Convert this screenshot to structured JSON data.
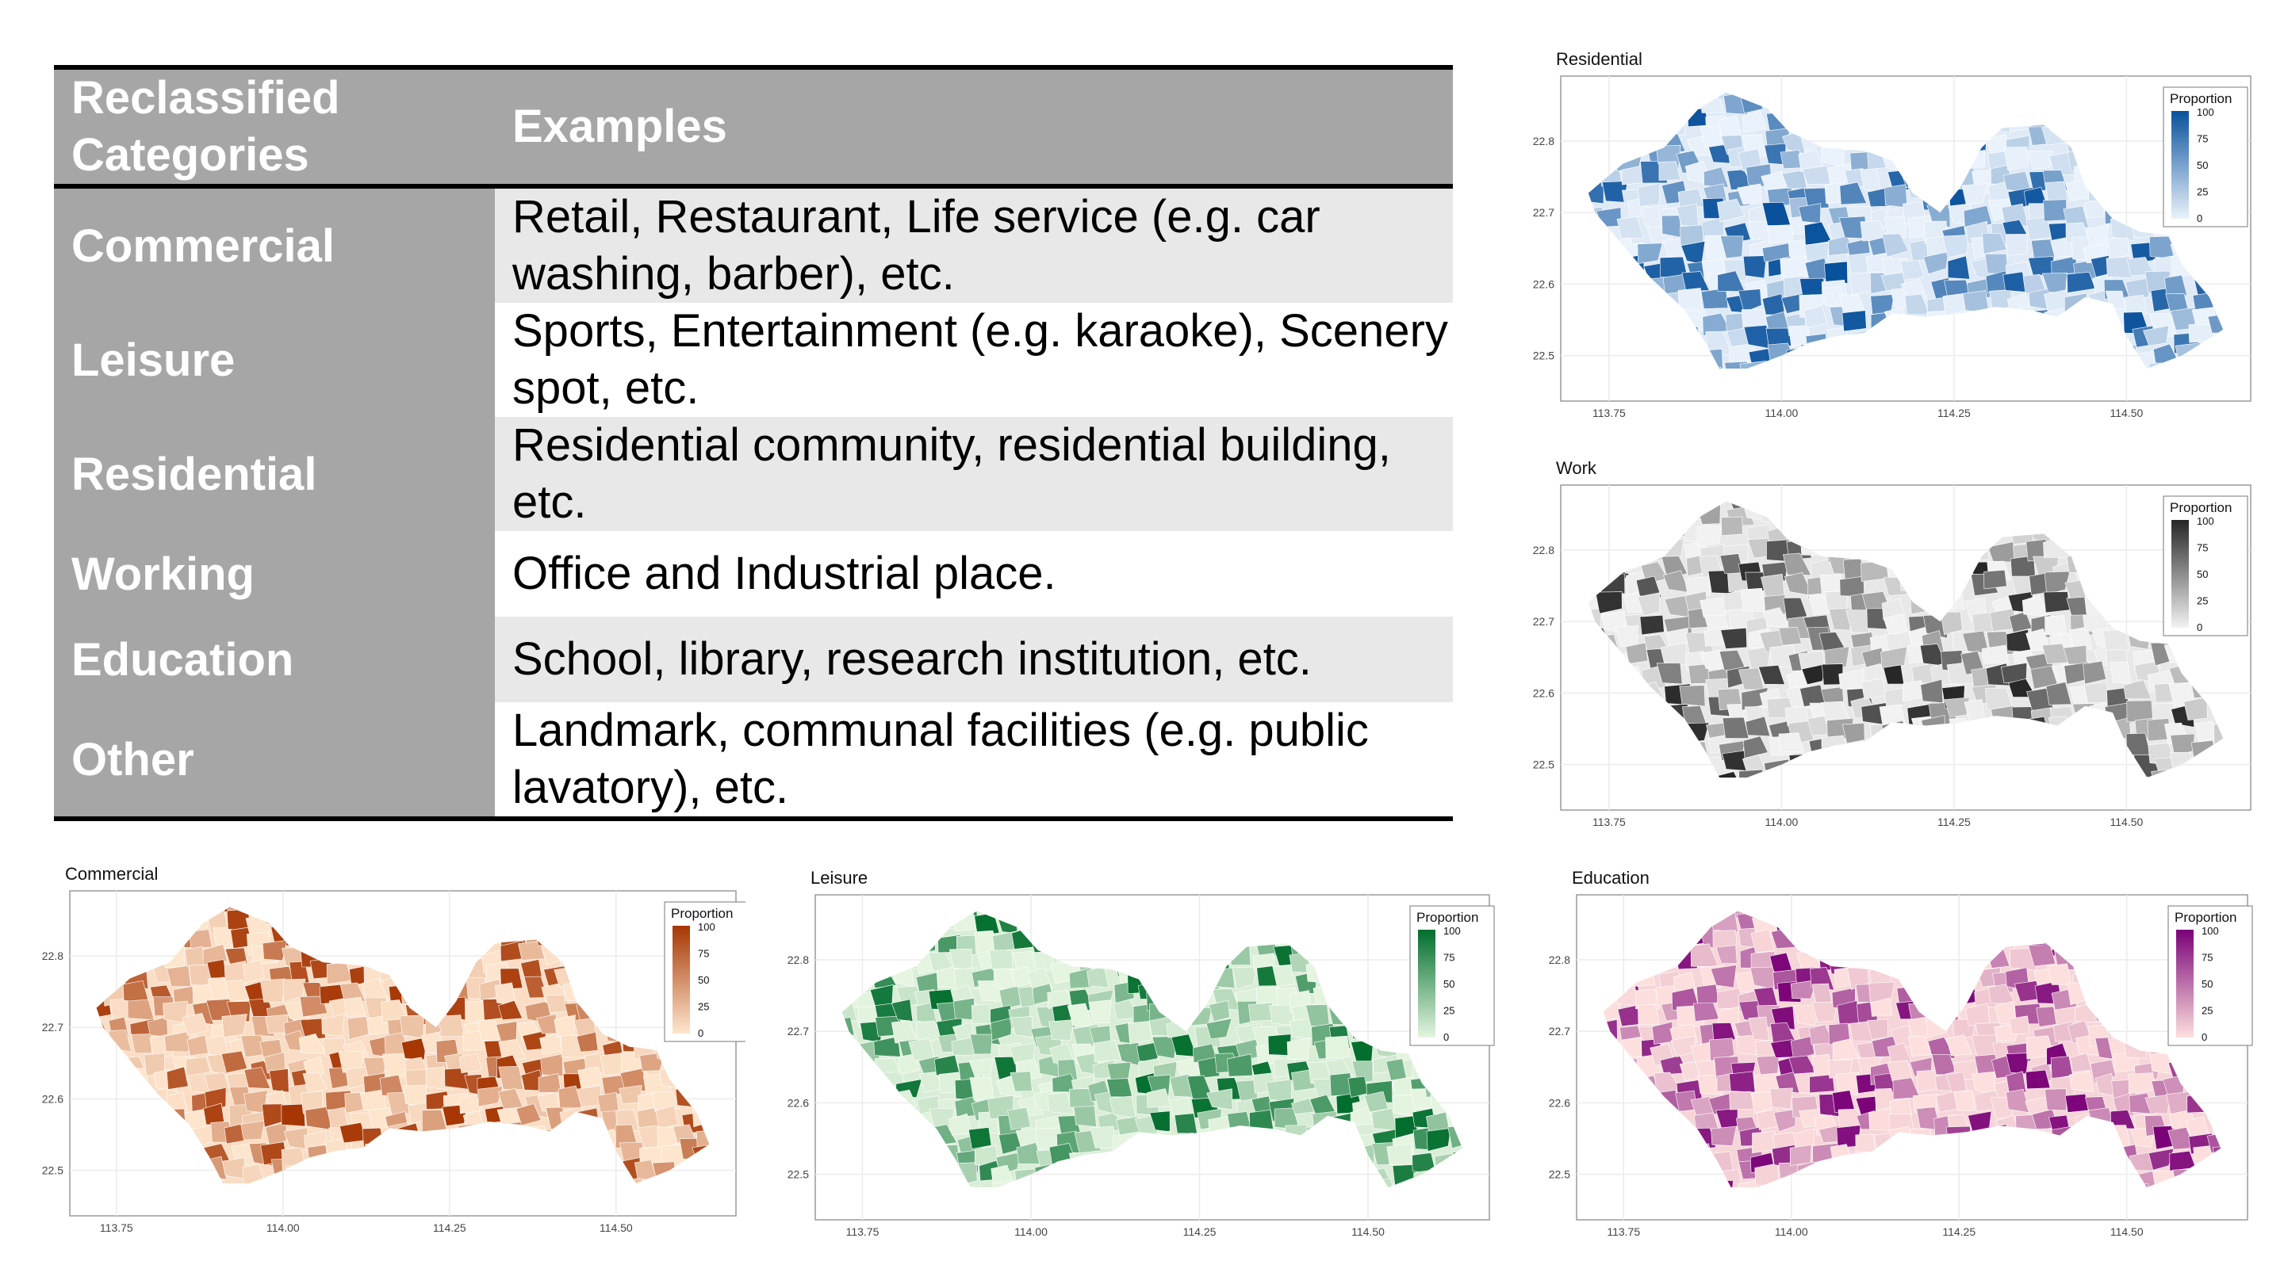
{
  "table": {
    "header": {
      "col1": "Reclassified Categories",
      "col2": "Examples"
    },
    "rows": [
      {
        "category": "Commercial",
        "examples": "Retail, Restaurant, Life service (e.g. car washing, barber), etc."
      },
      {
        "category": "Leisure",
        "examples": "Sports, Entertainment (e.g. karaoke), Scenery spot, etc."
      },
      {
        "category": "Residential",
        "examples": "Residential community, residential building, etc."
      },
      {
        "category": "Working",
        "examples": "Office and Industrial place."
      },
      {
        "category": "Education",
        "examples": "School, library, research institution, etc."
      },
      {
        "category": "Other",
        "examples": "Landmark, communal facilities (e.g. public lavatory), etc."
      }
    ]
  },
  "maps": [
    {
      "id": "residential",
      "title": "Residential",
      "legend_title": "Proportion",
      "color_low": "#eaf2fb",
      "color_high": "#08519c"
    },
    {
      "id": "work",
      "title": "Work",
      "legend_title": "Proportion",
      "color_low": "#f2f2f2",
      "color_high": "#262626"
    },
    {
      "id": "commercial",
      "title": "Commercial",
      "legend_title": "Proportion",
      "color_low": "#fee6ce",
      "color_high": "#a63603"
    },
    {
      "id": "leisure",
      "title": "Leisure",
      "legend_title": "Proportion",
      "color_low": "#e5f5e0",
      "color_high": "#006d2c"
    },
    {
      "id": "education",
      "title": "Education",
      "legend_title": "Proportion",
      "color_low": "#fde0dd",
      "color_high": "#7a0177"
    }
  ],
  "axes": {
    "x_ticks": [
      "113.75",
      "114.00",
      "114.25",
      "114.50"
    ],
    "y_ticks": [
      "22.8",
      "22.7",
      "22.6",
      "22.5"
    ],
    "legend_ticks": [
      "100",
      "75",
      "50",
      "25",
      "0"
    ]
  }
}
